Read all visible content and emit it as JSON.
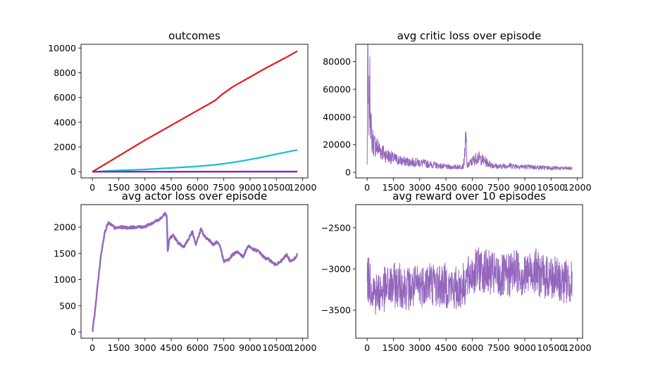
{
  "chart_data": [
    {
      "type": "line",
      "title": "outcomes",
      "xlim": [
        -650,
        12300
      ],
      "ylim": [
        -500,
        10300
      ],
      "xticks": [
        0,
        1500,
        3000,
        4500,
        6000,
        7500,
        9000,
        10500,
        12000
      ],
      "yticks": [
        0,
        2000,
        4000,
        6000,
        8000,
        10000
      ],
      "series": [
        {
          "color": "#e41a1c",
          "style": "thick",
          "points": [
            [
              0,
              0
            ],
            [
              1000,
              840
            ],
            [
              2000,
              1700
            ],
            [
              3000,
              2550
            ],
            [
              4000,
              3350
            ],
            [
              5000,
              4150
            ],
            [
              6000,
              4950
            ],
            [
              7000,
              5750
            ],
            [
              7400,
              6250
            ],
            [
              8000,
              6850
            ],
            [
              9000,
              7650
            ],
            [
              10000,
              8450
            ],
            [
              11000,
              9200
            ],
            [
              11700,
              9750
            ]
          ]
        },
        {
          "color": "#17becf",
          "style": "thick",
          "points": [
            [
              0,
              0
            ],
            [
              1500,
              100
            ],
            [
              3000,
              180
            ],
            [
              4500,
              300
            ],
            [
              6000,
              430
            ],
            [
              7000,
              560
            ],
            [
              7500,
              640
            ],
            [
              8500,
              860
            ],
            [
              9500,
              1120
            ],
            [
              10500,
              1420
            ],
            [
              11700,
              1760
            ]
          ]
        },
        {
          "color": "#1f77b4",
          "style": "thick",
          "points": [
            [
              0,
              0
            ],
            [
              11700,
              5
            ]
          ]
        },
        {
          "color": "#9b19b8",
          "style": "thick",
          "points": [
            [
              0,
              0
            ],
            [
              11700,
              10
            ]
          ]
        }
      ]
    },
    {
      "type": "line",
      "title": "avg critic loss over episode",
      "xlim": [
        -650,
        12300
      ],
      "ylim": [
        -4000,
        92500
      ],
      "xticks": [
        0,
        1500,
        3000,
        4500,
        6000,
        7500,
        9000,
        10500,
        12000
      ],
      "yticks": [
        0,
        20000,
        40000,
        60000,
        80000
      ],
      "series": [
        {
          "color": "#9467bd",
          "style": "noisy",
          "points": [
            [
              0,
              5000
            ],
            [
              30,
              88500
            ],
            [
              80,
              35000
            ],
            [
              150,
              60000
            ],
            [
              250,
              25000
            ],
            [
              400,
              20000
            ],
            [
              700,
              17000
            ],
            [
              1000,
              13000
            ],
            [
              1500,
              10000
            ],
            [
              2000,
              8000
            ],
            [
              2500,
              7500
            ],
            [
              3000,
              7000
            ],
            [
              3500,
              6000
            ],
            [
              4000,
              5000
            ],
            [
              4500,
              4000
            ],
            [
              5000,
              3800
            ],
            [
              5500,
              4500
            ],
            [
              5650,
              25000
            ],
            [
              5700,
              4500
            ],
            [
              6000,
              8000
            ],
            [
              6300,
              11000
            ],
            [
              7000,
              6000
            ],
            [
              7500,
              4000
            ],
            [
              8000,
              5000
            ],
            [
              9000,
              4000
            ],
            [
              10000,
              3500
            ],
            [
              11000,
              3000
            ],
            [
              11700,
              2800
            ]
          ]
        }
      ]
    },
    {
      "type": "line",
      "title": "avg actor loss over episode",
      "xlim": [
        -650,
        12300
      ],
      "ylim": [
        -120,
        2430
      ],
      "xticks": [
        0,
        1500,
        3000,
        4500,
        6000,
        7500,
        9000,
        10500,
        12000
      ],
      "yticks": [
        0,
        500,
        1000,
        1500,
        2000
      ],
      "series": [
        {
          "color": "#9467bd",
          "style": "line",
          "points": [
            [
              0,
              0
            ],
            [
              150,
              400
            ],
            [
              300,
              900
            ],
            [
              500,
              1500
            ],
            [
              700,
              1900
            ],
            [
              900,
              2080
            ],
            [
              1100,
              2040
            ],
            [
              1300,
              1980
            ],
            [
              1600,
              2000
            ],
            [
              2000,
              1990
            ],
            [
              2500,
              2000
            ],
            [
              3000,
              2010
            ],
            [
              3500,
              2090
            ],
            [
              3800,
              2150
            ],
            [
              4000,
              2200
            ],
            [
              4150,
              2270
            ],
            [
              4250,
              2200
            ],
            [
              4300,
              1500
            ],
            [
              4400,
              1780
            ],
            [
              4600,
              1850
            ],
            [
              4900,
              1700
            ],
            [
              5200,
              1620
            ],
            [
              5500,
              1770
            ],
            [
              5700,
              1920
            ],
            [
              5900,
              1680
            ],
            [
              6000,
              1760
            ],
            [
              6200,
              1960
            ],
            [
              6400,
              1820
            ],
            [
              6700,
              1750
            ],
            [
              6900,
              1660
            ],
            [
              7100,
              1720
            ],
            [
              7300,
              1620
            ],
            [
              7500,
              1350
            ],
            [
              7800,
              1380
            ],
            [
              8000,
              1480
            ],
            [
              8300,
              1530
            ],
            [
              8600,
              1430
            ],
            [
              8900,
              1650
            ],
            [
              9200,
              1570
            ],
            [
              9500,
              1540
            ],
            [
              9800,
              1420
            ],
            [
              10100,
              1380
            ],
            [
              10400,
              1290
            ],
            [
              10700,
              1320
            ],
            [
              10900,
              1400
            ],
            [
              11100,
              1480
            ],
            [
              11300,
              1340
            ],
            [
              11500,
              1380
            ],
            [
              11700,
              1480
            ]
          ]
        }
      ]
    },
    {
      "type": "line",
      "title": "avg reward over 10 episodes",
      "xlim": [
        -650,
        12300
      ],
      "ylim": [
        -3840,
        -2220
      ],
      "xticks": [
        0,
        1500,
        3000,
        4500,
        6000,
        7500,
        9000,
        10500,
        12000
      ],
      "yticks": [
        -3500,
        -3000,
        -2500
      ],
      "series": [
        {
          "color": "#9467bd",
          "style": "noisy",
          "points": [
            [
              0,
              -3100
            ],
            [
              500,
              -3300
            ],
            [
              1000,
              -3250
            ],
            [
              1500,
              -3200
            ],
            [
              2000,
              -3200
            ],
            [
              2500,
              -3250
            ],
            [
              3000,
              -3200
            ],
            [
              3500,
              -3150
            ],
            [
              4000,
              -3200
            ],
            [
              4500,
              -3200
            ],
            [
              5000,
              -3250
            ],
            [
              5500,
              -3200
            ],
            [
              6000,
              -3050
            ],
            [
              6500,
              -3000
            ],
            [
              7000,
              -3050
            ],
            [
              7500,
              -3100
            ],
            [
              8000,
              -3100
            ],
            [
              8500,
              -3000
            ],
            [
              9000,
              -3100
            ],
            [
              9500,
              -3000
            ],
            [
              10000,
              -3100
            ],
            [
              10500,
              -3100
            ],
            [
              11000,
              -3150
            ],
            [
              11700,
              -3150
            ]
          ]
        }
      ]
    }
  ]
}
